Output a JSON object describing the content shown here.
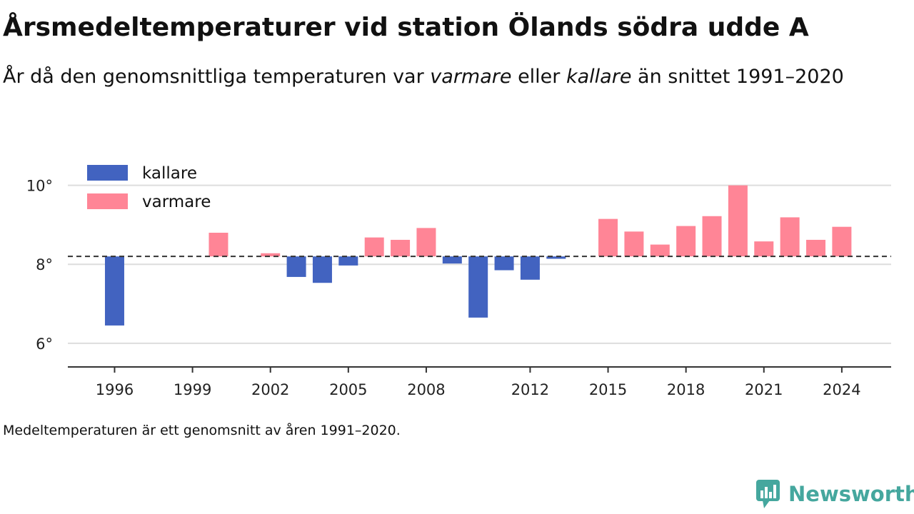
{
  "title": "Årsmedeltemperaturer vid station Ölands södra udde A",
  "subtitle": {
    "part1": "År då den genomsnittliga temperaturen var ",
    "warmer_word": "varmare",
    "part2": " eller ",
    "colder_word": "kallare",
    "part3": " än snittet 1991–2020"
  },
  "footnote": "Medeltemperaturen är ett genomsnitt av åren 1991–2020.",
  "brand": "Newsworthy",
  "colors": {
    "kallare": "#4263c0",
    "varmare": "#ff8596",
    "brand": "#45a79e"
  },
  "chart_data": {
    "type": "bar",
    "baseline": 8.2,
    "ylim": [
      5.4,
      10.5
    ],
    "yticks": [
      6,
      8,
      10
    ],
    "ytick_labels": [
      "6°",
      "8°",
      "10°"
    ],
    "xlim": [
      1994.2,
      2025.9
    ],
    "xticks": [
      1996,
      1999,
      2002,
      2005,
      2008,
      2012,
      2015,
      2018,
      2021,
      2024
    ],
    "legend": {
      "position": "top-left",
      "items": [
        {
          "key": "kallare",
          "label": "kallare"
        },
        {
          "key": "varmare",
          "label": "varmare"
        }
      ]
    },
    "years": [
      1996,
      2000,
      2002,
      2003,
      2004,
      2005,
      2006,
      2007,
      2008,
      2009,
      2010,
      2011,
      2012,
      2013,
      2015,
      2016,
      2017,
      2018,
      2019,
      2020,
      2021,
      2022,
      2023,
      2024
    ],
    "values": [
      6.45,
      8.8,
      8.28,
      7.68,
      7.53,
      7.97,
      8.68,
      8.62,
      8.92,
      8.02,
      6.65,
      7.85,
      7.61,
      8.14,
      9.15,
      8.83,
      8.5,
      8.97,
      9.22,
      10.0,
      8.58,
      9.19,
      8.62,
      8.95
    ]
  }
}
